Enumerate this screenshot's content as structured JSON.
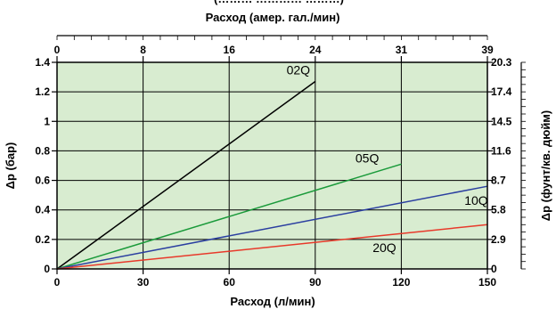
{
  "chart_data": {
    "type": "line",
    "top_title_partial": "(……… ………… ………)",
    "xlabel": "Расход (л/мин)",
    "xlabel_top": "Расход (амер. гал./мин)",
    "ylabel": "Δp (бар)",
    "ylabel_right": "Δp (фунт/кв. дюйм)",
    "xlim": [
      0,
      150
    ],
    "ylim": [
      0,
      1.4
    ],
    "x_ticks": [
      "0",
      "30",
      "60",
      "90",
      "120",
      "150"
    ],
    "x_top_ticks": [
      "0",
      "8",
      "16",
      "24",
      "31",
      "39"
    ],
    "y_ticks": [
      "0",
      "0.2",
      "0.4",
      "0.6",
      "0.8",
      "1",
      "1.2",
      "1.4"
    ],
    "y_right_ticks": [
      "0",
      "2.9",
      "5.8",
      "8.7",
      "11.6",
      "14.5",
      "17.4",
      "20.3"
    ],
    "grid": true,
    "series": [
      {
        "name": "02Q",
        "color": "#000000",
        "x": [
          0,
          90
        ],
        "y": [
          0,
          1.27
        ],
        "label_at": [
          80,
          1.32
        ]
      },
      {
        "name": "05Q",
        "color": "#1a9a3a",
        "x": [
          0,
          120
        ],
        "y": [
          0,
          0.71
        ],
        "label_at": [
          104,
          0.72
        ]
      },
      {
        "name": "10Q",
        "color": "#2b3fa0",
        "x": [
          0,
          150
        ],
        "y": [
          0,
          0.56
        ],
        "label_at": [
          142,
          0.435
        ]
      },
      {
        "name": "20Q",
        "color": "#e8392a",
        "x": [
          0,
          150
        ],
        "y": [
          0,
          0.3
        ],
        "label_at": [
          110,
          0.115
        ]
      }
    ],
    "plot_background": "#d8ecd0"
  }
}
